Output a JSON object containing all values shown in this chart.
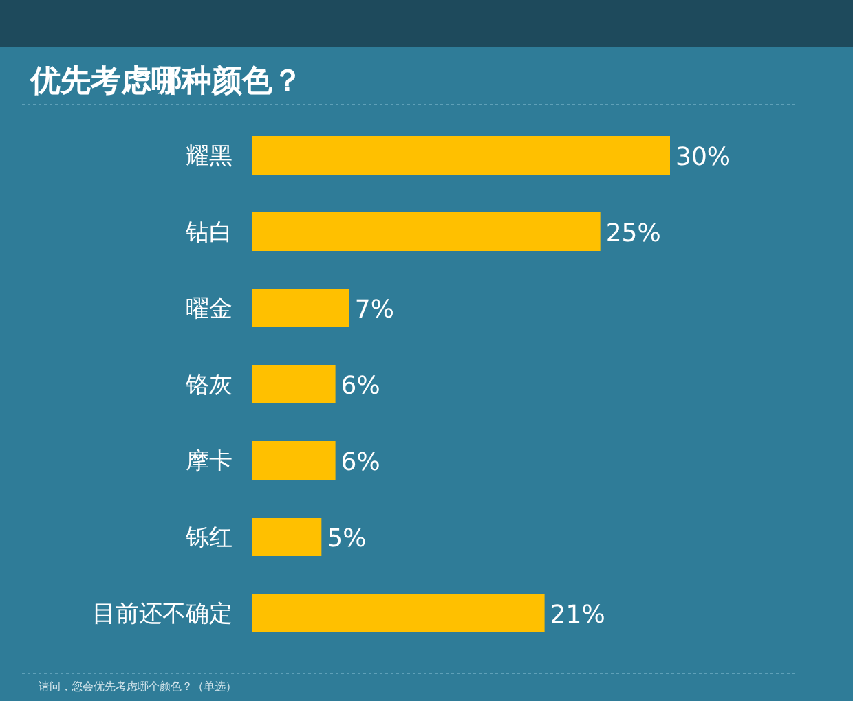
{
  "chart_data": {
    "type": "bar",
    "orientation": "horizontal",
    "title": "优先考虑哪种颜色？",
    "categories": [
      "耀黑",
      "钻白",
      "曜金",
      "铬灰",
      "摩卡",
      "铄红",
      "目前还不确定"
    ],
    "values": [
      30,
      25,
      7,
      6,
      6,
      5,
      21
    ],
    "value_labels": [
      "30%",
      "25%",
      "7%",
      "6%",
      "6%",
      "5%",
      "21%"
    ],
    "color": "#ffc000",
    "annotations": [
      "请问，您会优先考虑哪个颜色？（单选）"
    ]
  }
}
